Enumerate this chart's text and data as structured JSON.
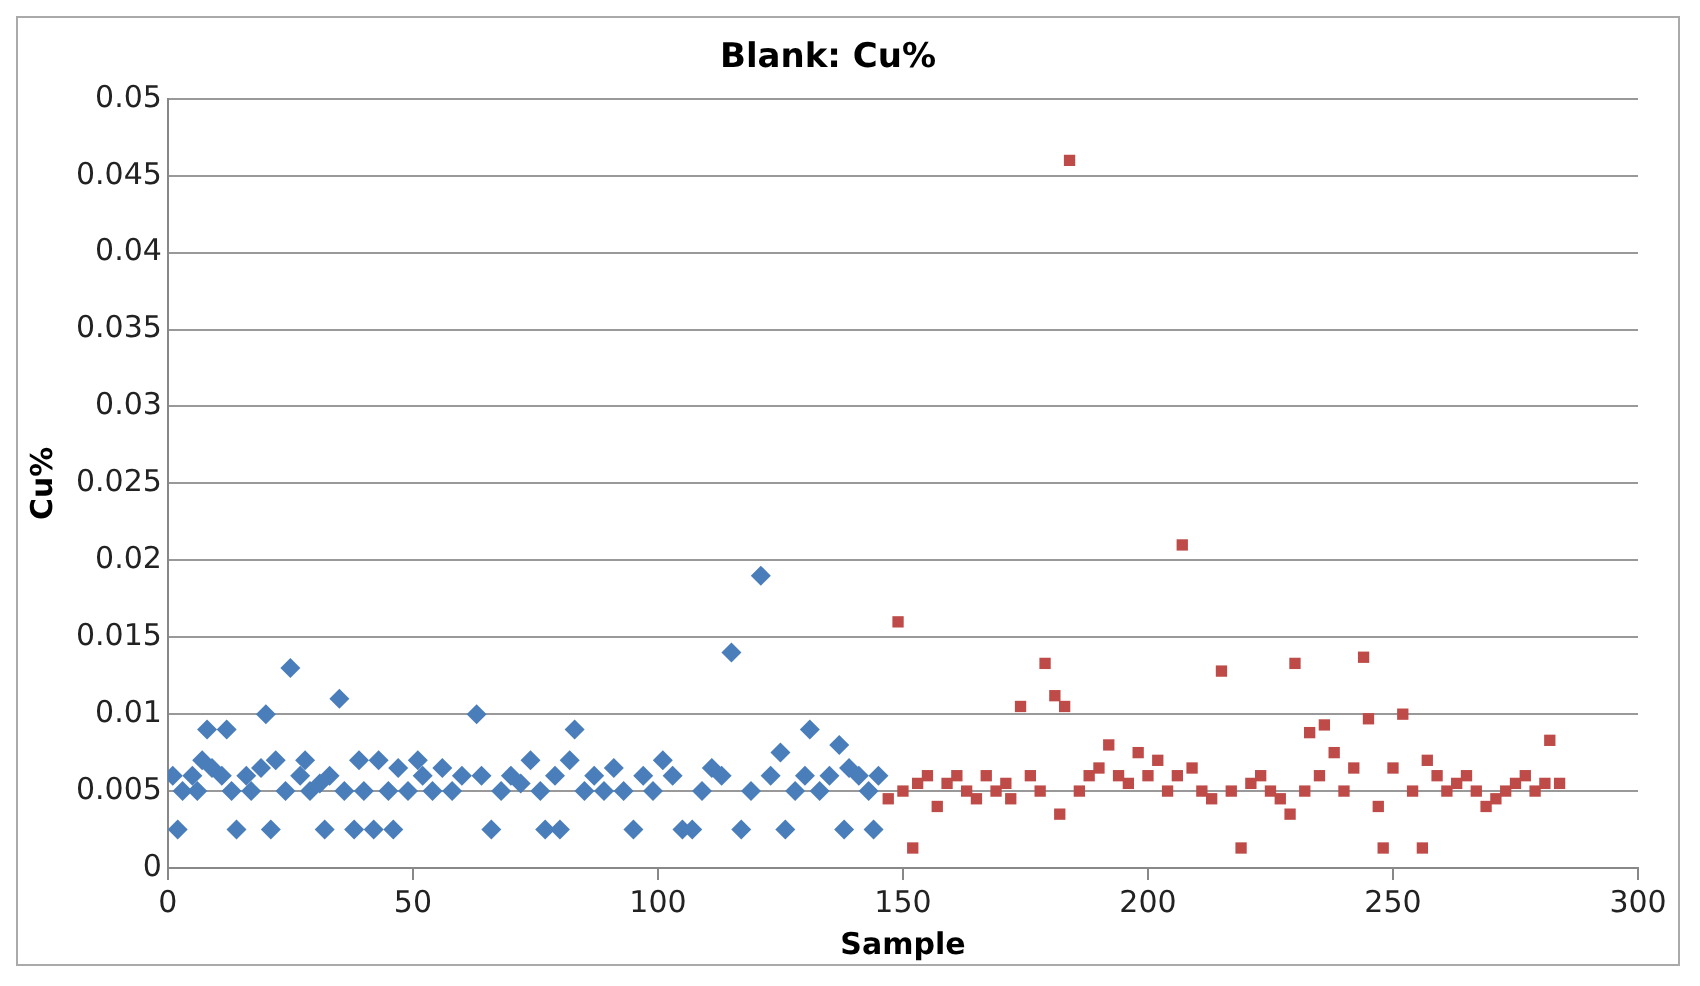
{
  "chart_data": {
    "type": "scatter",
    "title": "Blank: Cu%",
    "xlabel": "Sample",
    "ylabel": "Cu%",
    "xlim": [
      0,
      300
    ],
    "xticks": [
      0,
      50,
      100,
      150,
      200,
      250,
      300
    ],
    "ylim": [
      0,
      0.05
    ],
    "yticks": [
      0,
      0.005,
      0.01,
      0.015,
      0.02,
      0.025,
      0.03,
      0.035,
      0.04,
      0.045,
      0.05
    ],
    "grid": "y",
    "legend": false,
    "series": [
      {
        "color": "#4a7ebb",
        "marker": "diamond",
        "x": [
          1,
          2,
          3,
          5,
          6,
          7,
          8,
          9,
          11,
          12,
          13,
          14,
          16,
          17,
          19,
          20,
          21,
          22,
          24,
          25,
          27,
          28,
          29,
          31,
          32,
          33,
          35,
          36,
          38,
          39,
          40,
          42,
          43,
          45,
          46,
          47,
          49,
          51,
          52,
          54,
          56,
          58,
          60,
          63,
          64,
          66,
          68,
          70,
          72,
          74,
          76,
          77,
          79,
          80,
          82,
          83,
          85,
          87,
          89,
          91,
          93,
          95,
          97,
          99,
          101,
          103,
          105,
          107,
          109,
          111,
          113,
          115,
          117,
          119,
          121,
          123,
          125,
          126,
          128,
          130,
          131,
          133,
          135,
          137,
          138,
          139,
          141,
          143,
          144,
          145
        ],
        "values": [
          0.006,
          0.0025,
          0.005,
          0.006,
          0.005,
          0.007,
          0.009,
          0.0065,
          0.006,
          0.009,
          0.005,
          0.0025,
          0.006,
          0.005,
          0.0065,
          0.01,
          0.0025,
          0.007,
          0.005,
          0.013,
          0.006,
          0.007,
          0.005,
          0.0055,
          0.0025,
          0.006,
          0.011,
          0.005,
          0.0025,
          0.007,
          0.005,
          0.0025,
          0.007,
          0.005,
          0.0025,
          0.0065,
          0.005,
          0.007,
          0.006,
          0.005,
          0.0065,
          0.005,
          0.006,
          0.01,
          0.006,
          0.0025,
          0.005,
          0.006,
          0.0055,
          0.007,
          0.005,
          0.0025,
          0.006,
          0.0025,
          0.007,
          0.009,
          0.005,
          0.006,
          0.005,
          0.0065,
          0.005,
          0.0025,
          0.006,
          0.005,
          0.007,
          0.006,
          0.0025,
          0.0025,
          0.005,
          0.0065,
          0.006,
          0.014,
          0.0025,
          0.005,
          0.019,
          0.006,
          0.0075,
          0.0025,
          0.005,
          0.006,
          0.009,
          0.005,
          0.006,
          0.008,
          0.0025,
          0.0065,
          0.006,
          0.005,
          0.0025,
          0.006
        ]
      },
      {
        "color": "#be4b48",
        "marker": "square",
        "x": [
          147,
          149,
          150,
          152,
          153,
          155,
          157,
          159,
          161,
          163,
          165,
          167,
          169,
          171,
          172,
          174,
          176,
          178,
          179,
          181,
          182,
          183,
          184,
          186,
          188,
          190,
          192,
          194,
          196,
          198,
          200,
          202,
          204,
          206,
          207,
          209,
          211,
          213,
          215,
          217,
          219,
          221,
          223,
          225,
          227,
          229,
          230,
          232,
          233,
          235,
          236,
          238,
          240,
          242,
          244,
          245,
          247,
          248,
          250,
          252,
          254,
          256,
          257,
          259,
          261,
          263,
          265,
          267,
          269,
          271,
          273,
          275,
          277,
          279,
          281,
          282,
          284
        ],
        "values": [
          0.0045,
          0.016,
          0.005,
          0.0013,
          0.0055,
          0.006,
          0.004,
          0.0055,
          0.006,
          0.005,
          0.0045,
          0.006,
          0.005,
          0.0055,
          0.0045,
          0.0105,
          0.006,
          0.005,
          0.0133,
          0.0112,
          0.0035,
          0.0105,
          0.046,
          0.005,
          0.006,
          0.0065,
          0.008,
          0.006,
          0.0055,
          0.0075,
          0.006,
          0.007,
          0.005,
          0.006,
          0.021,
          0.0065,
          0.005,
          0.0045,
          0.0128,
          0.005,
          0.0013,
          0.0055,
          0.006,
          0.005,
          0.0045,
          0.0035,
          0.0133,
          0.005,
          0.0088,
          0.006,
          0.0093,
          0.0075,
          0.005,
          0.0065,
          0.0137,
          0.0097,
          0.004,
          0.0013,
          0.0065,
          0.01,
          0.005,
          0.0013,
          0.007,
          0.006,
          0.005,
          0.0055,
          0.006,
          0.005,
          0.004,
          0.0045,
          0.005,
          0.0055,
          0.006,
          0.005,
          0.0055,
          0.0083,
          0.0055
        ]
      }
    ]
  }
}
